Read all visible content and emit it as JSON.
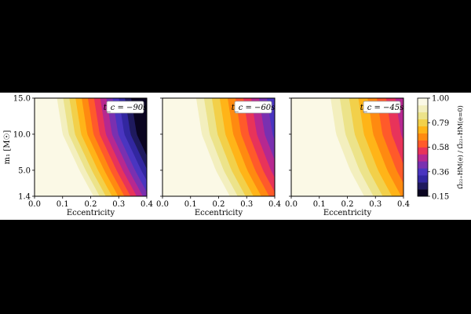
{
  "chart_data": {
    "type": "heatmap",
    "shared_axes": {
      "xlabel": "Eccentricity",
      "xlim": [
        0.0,
        0.4
      ],
      "xticks": [
        "0.0",
        "0.1",
        "0.2",
        "0.3",
        "0.4"
      ],
      "ylabel": "m₁ [M☉]",
      "ylim": [
        1.4,
        15.0
      ],
      "yticks": [
        {
          "value": 1.4,
          "label": "1.4"
        },
        {
          "value": 5.0,
          "label": "5.0"
        },
        {
          "value": 10.0,
          "label": "10.0"
        },
        {
          "value": 15.0,
          "label": "15.0"
        }
      ]
    },
    "colorbar": {
      "label": "Ω̄₂₂₊HM(e) / Ω̄₂₂₊HM(e=0)",
      "range": [
        0.15,
        1.0
      ],
      "ticks": [
        "1.00",
        "0.79",
        "0.58",
        "0.36",
        "0.15"
      ],
      "colors": [
        "#0a0420",
        "#1f1a5e",
        "#3227a0",
        "#4a35c0",
        "#7a30b0",
        "#b62890",
        "#e8335a",
        "#ff5a2a",
        "#ff8a10",
        "#ffb418",
        "#f2d04a",
        "#ece38a",
        "#f3efbe",
        "#fbf9e6"
      ]
    },
    "panels": [
      {
        "annotation": "t_c = −90s",
        "transition_e_at_y": [
          [
            1.4,
            0.21
          ],
          [
            5.0,
            0.16
          ],
          [
            10.0,
            0.1
          ],
          [
            15.0,
            0.08
          ]
        ],
        "contour_step_e": 0.022,
        "min_value": 0.15
      },
      {
        "annotation": "t_c = −60s",
        "transition_e_at_y": [
          [
            1.4,
            0.24
          ],
          [
            5.0,
            0.19
          ],
          [
            10.0,
            0.14
          ],
          [
            15.0,
            0.12
          ]
        ],
        "contour_step_e": 0.028,
        "min_value": 0.36
      },
      {
        "annotation": "t_c = −45s",
        "transition_e_at_y": [
          [
            1.4,
            0.26
          ],
          [
            5.0,
            0.21
          ],
          [
            10.0,
            0.16
          ],
          [
            15.0,
            0.14
          ]
        ],
        "contour_step_e": 0.033,
        "min_value": 0.36
      }
    ]
  }
}
